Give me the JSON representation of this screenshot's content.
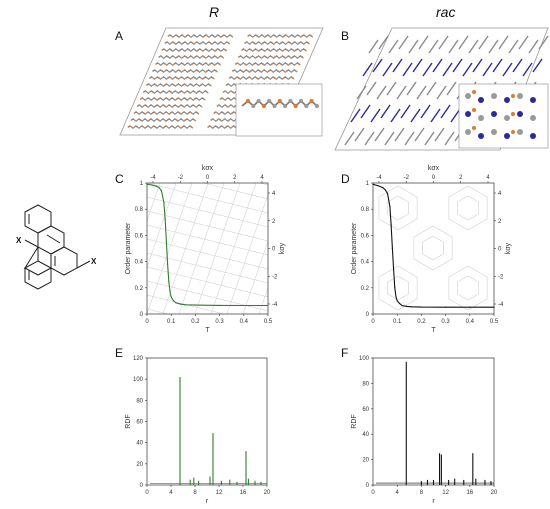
{
  "figure": {
    "panel_letters": {
      "A": "A",
      "B": "B",
      "C": "C",
      "D": "D",
      "E": "E",
      "F": "F"
    },
    "column_titles": {
      "left": "R",
      "right": "rac"
    },
    "molecule": {
      "substituent_left": "X",
      "substituent_right": "X"
    },
    "colors": {
      "R_series": "#2e7d2e",
      "rac_series": "#111111",
      "rac_blue": "#2a2a9a",
      "atom_orange": "#e07a2e",
      "atom_gray": "#9a9a9a"
    }
  },
  "chart_data": [
    {
      "panel": "C",
      "type": "line",
      "xlabel": "T",
      "ylabel": "Order parameter",
      "top_axis_label": "kσx",
      "right_axis_label": "kσy",
      "xlim": [
        0,
        0.5
      ],
      "ylim": [
        0,
        1
      ],
      "x_ticks": [
        "0",
        "0.1",
        "0.2",
        "0.3",
        "0.4",
        "0.5"
      ],
      "y_ticks": [
        "0",
        "0.2",
        "0.4",
        "0.6",
        "0.8",
        "1"
      ],
      "top_ticks": [
        "-4",
        "-2",
        "0",
        "2",
        "4"
      ],
      "right_ticks": [
        "4",
        "2",
        "0",
        "-2",
        "-4"
      ],
      "series": [
        {
          "color": "#2e7d2e",
          "x": [
            0.0,
            0.02,
            0.04,
            0.05,
            0.06,
            0.07,
            0.075,
            0.08,
            0.085,
            0.09,
            0.095,
            0.1,
            0.11,
            0.12,
            0.14,
            0.16,
            0.2,
            0.3,
            0.4,
            0.5
          ],
          "y": [
            0.99,
            0.985,
            0.975,
            0.965,
            0.94,
            0.85,
            0.72,
            0.55,
            0.38,
            0.25,
            0.17,
            0.13,
            0.1,
            0.085,
            0.075,
            0.07,
            0.068,
            0.066,
            0.065,
            0.065
          ]
        }
      ]
    },
    {
      "panel": "D",
      "type": "line",
      "xlabel": "T",
      "ylabel": "Order parameter",
      "top_axis_label": "kσx",
      "right_axis_label": "kσy",
      "xlim": [
        0,
        0.5
      ],
      "ylim": [
        0,
        1
      ],
      "x_ticks": [
        "0",
        "0.1",
        "0.2",
        "0.3",
        "0.4",
        "0.5"
      ],
      "y_ticks": [
        "0",
        "0.2",
        "0.4",
        "0.6",
        "0.8",
        "1"
      ],
      "top_ticks": [
        "-4",
        "-2",
        "0",
        "2",
        "4"
      ],
      "right_ticks": [
        "4",
        "2",
        "0",
        "-2",
        "-4"
      ],
      "series": [
        {
          "color": "#111111",
          "x": [
            0.0,
            0.02,
            0.04,
            0.05,
            0.06,
            0.07,
            0.075,
            0.08,
            0.085,
            0.09,
            0.095,
            0.1,
            0.11,
            0.12,
            0.14,
            0.16,
            0.2,
            0.3,
            0.4,
            0.5
          ],
          "y": [
            0.99,
            0.98,
            0.965,
            0.95,
            0.92,
            0.82,
            0.68,
            0.5,
            0.34,
            0.2,
            0.13,
            0.1,
            0.08,
            0.065,
            0.058,
            0.055,
            0.053,
            0.052,
            0.052,
            0.052
          ]
        }
      ]
    },
    {
      "panel": "E",
      "type": "line",
      "xlabel": "r",
      "ylabel": "RDF",
      "xlim": [
        0,
        20
      ],
      "ylim": [
        0,
        120
      ],
      "x_ticks": [
        "0",
        "4",
        "8",
        "12",
        "16",
        "20"
      ],
      "y_ticks": [
        "0",
        "20",
        "40",
        "60",
        "80",
        "100",
        "120"
      ],
      "series": [
        {
          "color": "#2e7d2e",
          "x": [
            5.5,
            7.2,
            7.8,
            8.6,
            10.5,
            11.0,
            12.4,
            13.8,
            15.0,
            16.5,
            16.9,
            18.0,
            19.0
          ],
          "y": [
            102,
            5,
            7,
            4,
            8,
            49,
            4,
            5,
            3,
            32,
            6,
            4,
            3
          ]
        }
      ]
    },
    {
      "panel": "F",
      "type": "line",
      "xlabel": "r",
      "ylabel": "RDF",
      "xlim": [
        0,
        20
      ],
      "ylim": [
        0,
        100
      ],
      "x_ticks": [
        "0",
        "4",
        "8",
        "12",
        "16",
        "20"
      ],
      "y_ticks": [
        "0",
        "20",
        "40",
        "60",
        "80",
        "100"
      ],
      "series": [
        {
          "color": "#111111",
          "x": [
            5.5,
            8.0,
            9.0,
            10.0,
            11.0,
            11.3,
            12.5,
            13.5,
            15.0,
            16.5,
            17.0,
            18.5,
            19.5
          ],
          "y": [
            97,
            3,
            4,
            4,
            25,
            24,
            4,
            5,
            4,
            25,
            5,
            4,
            3
          ]
        }
      ]
    }
  ]
}
